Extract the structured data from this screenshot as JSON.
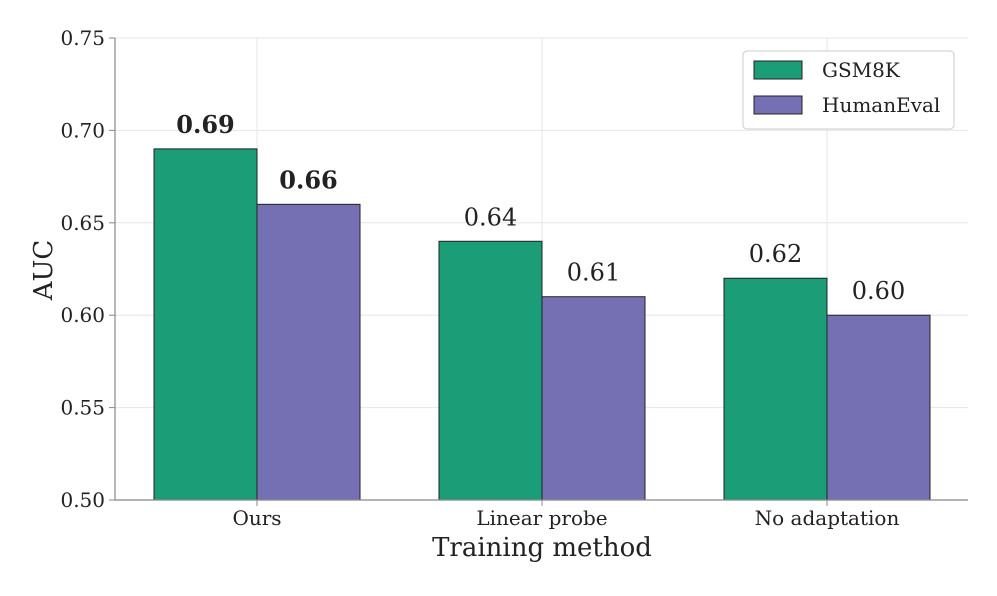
{
  "chart_data": {
    "type": "bar",
    "title": "",
    "xlabel": "Training method",
    "ylabel": "AUC",
    "categories": [
      "Ours",
      "Linear probe",
      "No adaptation"
    ],
    "series": [
      {
        "name": "GSM8K",
        "values": [
          0.69,
          0.64,
          0.62
        ],
        "color": "#1b9e77",
        "labels": [
          "0.69",
          "0.64",
          "0.62"
        ],
        "bold": [
          true,
          false,
          false
        ]
      },
      {
        "name": "HumanEval",
        "values": [
          0.66,
          0.61,
          0.6
        ],
        "color": "#7570b3",
        "labels": [
          "0.66",
          "0.61",
          "0.60"
        ],
        "bold": [
          true,
          false,
          false
        ]
      }
    ],
    "ylim": [
      0.5,
      0.75
    ],
    "yticks": [
      0.5,
      0.55,
      0.6,
      0.65,
      0.7,
      0.75
    ],
    "ytick_labels": [
      "0.50",
      "0.55",
      "0.60",
      "0.65",
      "0.70",
      "0.75"
    ],
    "grid": true,
    "legend": "top-right"
  }
}
